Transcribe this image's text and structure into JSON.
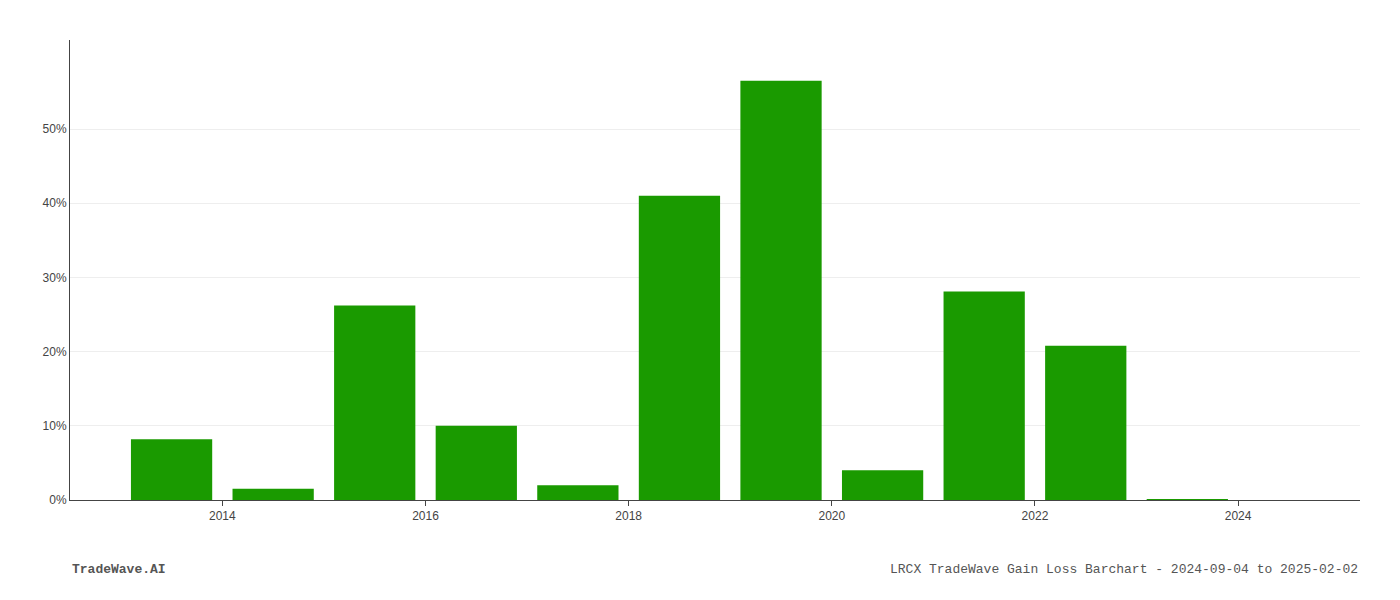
{
  "chart_data": {
    "type": "bar",
    "x": [
      2013.5,
      2014.5,
      2015.5,
      2016.5,
      2017.5,
      2018.5,
      2019.5,
      2020.5,
      2021.5,
      2022.5,
      2023.5
    ],
    "values": [
      0.082,
      0.015,
      0.262,
      0.1,
      0.02,
      0.41,
      0.565,
      0.04,
      0.281,
      0.208,
      0.001
    ],
    "color": "#1a9a00",
    "xlim": [
      2012.5,
      2025.2
    ],
    "xticks": [
      2014,
      2016,
      2018,
      2020,
      2022,
      2024
    ],
    "ylim": [
      0,
      0.62
    ],
    "yticks": [
      {
        "value": 0,
        "label": "0%"
      },
      {
        "value": 0.1,
        "label": "10%"
      },
      {
        "value": 0.2,
        "label": "20%"
      },
      {
        "value": 0.3,
        "label": "30%"
      },
      {
        "value": 0.4,
        "label": "40%"
      },
      {
        "value": 0.5,
        "label": "50%"
      }
    ],
    "grid": true,
    "annotations": [
      "TradeWave.AI",
      "LRCX TradeWave Gain Loss Barchart - 2024-09-04 to 2025-02-02"
    ]
  }
}
